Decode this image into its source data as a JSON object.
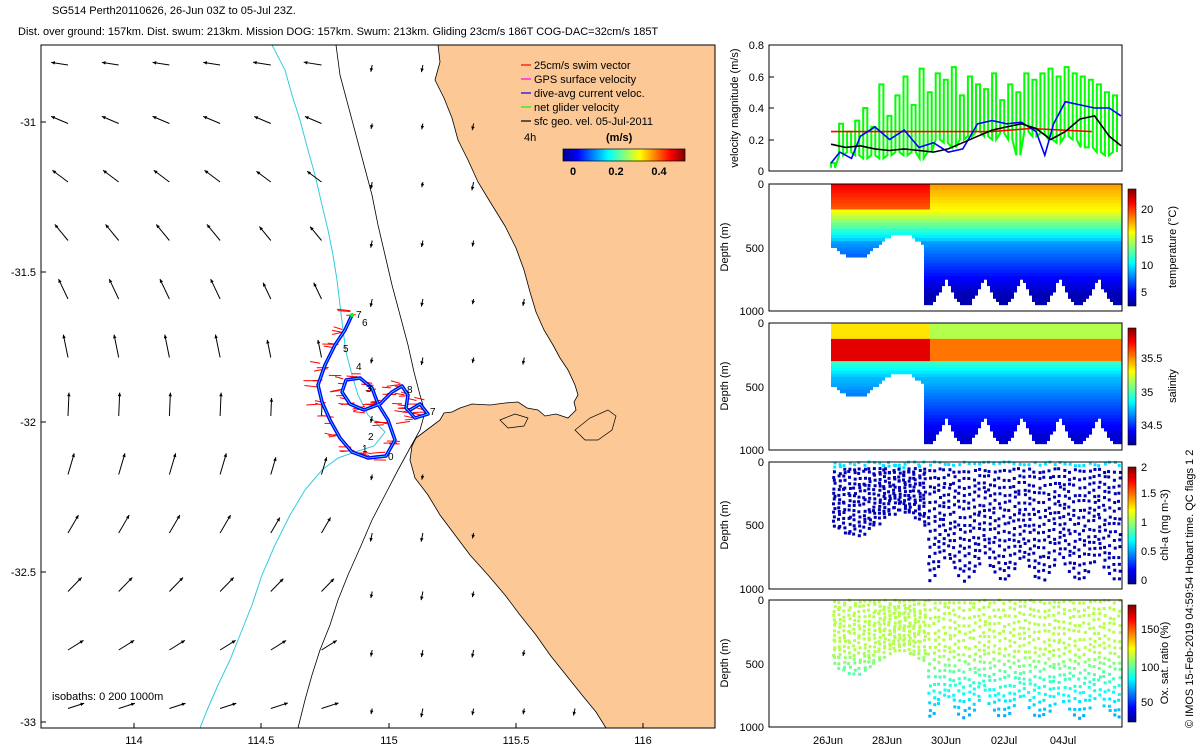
{
  "header": {
    "title_line1": "SG514 Perth20110626, 26-Jun 03Z to 05-Jul 23Z.",
    "title_line2": "Dist. over ground: 157km. Dist. swum: 213km. Mission DOG: 157km. Swum: 213km. Gliding 23cm/s 186T COG-DAC=32cm/s 185T"
  },
  "map": {
    "legend": [
      {
        "label": "25cm/s swim vector",
        "color": "#ff0000"
      },
      {
        "label": "GPS surface velocity",
        "color": "#ff00ff"
      },
      {
        "label": "dive-avg current veloc.",
        "color": "#0000ff"
      },
      {
        "label": "net glider velocity",
        "color": "#00ff00"
      },
      {
        "label": "sfc geo. vel. 05-Jul-2011",
        "color": "#000000"
      }
    ],
    "colorbar_label": "(m/s)",
    "colorbar_ticks": [
      "0",
      "0.2",
      "0.4"
    ],
    "vector_scale_label": "4h",
    "isobaths_label": "isobaths: 0   200  1000m",
    "land_color": "#fbc896",
    "isobath_color": "#33ccdd",
    "ytick_labels": [
      "-31",
      "-31.5",
      "-32",
      "-32.5",
      "-33"
    ],
    "xtick_labels": [
      "114",
      "114.5",
      "115",
      "115.5",
      "116"
    ],
    "day_labels": [
      "0",
      "1",
      "2",
      "3",
      "4",
      "5",
      "6",
      "7",
      "7",
      "8"
    ]
  },
  "chart_data": [
    {
      "type": "line",
      "ylabel": "velocity magnitude (m/s)",
      "ylim": [
        0,
        0.8
      ],
      "yticks": [
        "0",
        "0.2",
        "0.4",
        "0.6",
        "0.8"
      ],
      "series": [
        {
          "color": "#ff0000",
          "x": [
            0,
            1.5,
            4.6,
            5.5,
            6.8,
            8.9
          ],
          "y": [
            0.25,
            0.25,
            0.25,
            0.25,
            0.27,
            0.25
          ]
        },
        {
          "color": "#0000ff",
          "x": [
            0,
            0.3,
            0.7,
            1.0,
            1.5,
            2.0,
            2.5,
            3.0,
            3.5,
            4.0,
            4.5,
            5.0,
            5.5,
            6.0,
            6.5,
            7.0,
            7.3,
            7.6,
            8.0,
            8.5,
            9.0,
            9.5,
            9.9
          ],
          "y": [
            0.05,
            0.12,
            0.08,
            0.22,
            0.28,
            0.2,
            0.26,
            0.15,
            0.18,
            0.12,
            0.14,
            0.3,
            0.32,
            0.3,
            0.31,
            0.25,
            0.1,
            0.3,
            0.44,
            0.42,
            0.4,
            0.4,
            0.35
          ]
        },
        {
          "color": "#000000",
          "x": [
            0,
            0.5,
            1.0,
            1.5,
            2.0,
            2.5,
            3.0,
            3.5,
            4.0,
            4.5,
            5.0,
            5.5,
            6.0,
            6.5,
            7.0,
            7.5,
            8.0,
            8.5,
            9.0,
            9.5,
            9.9
          ],
          "y": [
            0.17,
            0.15,
            0.16,
            0.14,
            0.13,
            0.14,
            0.13,
            0.12,
            0.14,
            0.18,
            0.22,
            0.26,
            0.28,
            0.3,
            0.27,
            0.2,
            0.25,
            0.33,
            0.35,
            0.22,
            0.16
          ]
        }
      ],
      "green_peaks": [
        0.05,
        0.3,
        0.25,
        0.32,
        0.4,
        0.28,
        0.55,
        0.35,
        0.48,
        0.6,
        0.42,
        0.65,
        0.5,
        0.62,
        0.58,
        0.66,
        0.48,
        0.6,
        0.55,
        0.52,
        0.62,
        0.45,
        0.55,
        0.5,
        0.62,
        0.58,
        0.62,
        0.65,
        0.6,
        0.66,
        0.62,
        0.6,
        0.58,
        0.55,
        0.5,
        0.48
      ],
      "green_lows": [
        0.02,
        0.1,
        0.12,
        0.1,
        0.08,
        0.1,
        0.08,
        0.1,
        0.12,
        0.1,
        0.12,
        0.08,
        0.12,
        0.2,
        0.18,
        0.15,
        0.2,
        0.22,
        0.25,
        0.22,
        0.2,
        0.24,
        0.2,
        0.1,
        0.25,
        0.22,
        0.24,
        0.2,
        0.18,
        0.22,
        0.2,
        0.15,
        0.15,
        0.12,
        0.1,
        0.12
      ]
    },
    {
      "type": "heatmap",
      "ylabel": "Depth (m)",
      "yticks": [
        "0",
        "500",
        "1000"
      ],
      "cbar_label": "temperature (°C)",
      "cbar_ticks": [
        "5",
        "10",
        "15",
        "20"
      ],
      "range": [
        3,
        23
      ],
      "cmap": "jet"
    },
    {
      "type": "heatmap",
      "ylabel": "Depth (m)",
      "yticks": [
        "0",
        "500",
        "1000"
      ],
      "cbar_label": "salinity",
      "cbar_ticks": [
        "34.5",
        "35",
        "35.5"
      ],
      "range": [
        34.3,
        35.8
      ],
      "cmap": "jet"
    },
    {
      "type": "scatter",
      "ylabel": "Depth (m)",
      "yticks": [
        "0",
        "500",
        "1000"
      ],
      "cbar_label": "chl-a (mg m-3)",
      "cbar_ticks": [
        "0",
        "0.5",
        "1",
        "1.5",
        "2"
      ],
      "range": [
        0,
        2
      ],
      "cmap": "jet"
    },
    {
      "type": "scatter",
      "ylabel": "Depth (m)",
      "yticks": [
        "0",
        "500",
        "1000"
      ],
      "cbar_label": "Ox. sat. ratio (%)",
      "cbar_ticks": [
        "50",
        "100",
        "150"
      ],
      "range": [
        20,
        175
      ],
      "cmap": "jet"
    }
  ],
  "time_axis": {
    "tick_labels": [
      "26Jun",
      "28Jun",
      "30Jun",
      "02Jul",
      "04Jul"
    ]
  },
  "footer": {
    "side_text": "© IMOS 15-Feb-2019 04:59:54 Hobart time. QC flags 1  2"
  }
}
